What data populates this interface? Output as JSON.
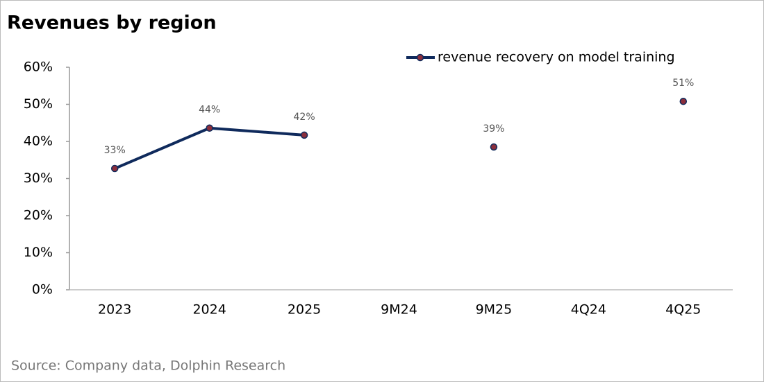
{
  "chart_data": {
    "type": "line",
    "title": "Revenues by region",
    "categories": [
      "2023",
      "2024",
      "2025",
      "9M24",
      "9M25",
      "4Q24",
      "4Q25"
    ],
    "series": [
      {
        "name": "revenue recovery on model training",
        "color": "#0f2a5c",
        "marker_color": "#8b2e3c",
        "values": [
          32.7,
          43.6,
          41.7,
          null,
          38.5,
          null,
          50.8
        ],
        "value_labels": [
          "33%",
          "44%",
          "42%",
          null,
          "39%",
          null,
          "51%"
        ]
      }
    ],
    "ylim": [
      0,
      60
    ],
    "yticks": [
      {
        "value": 0,
        "label": "0%"
      },
      {
        "value": 10,
        "label": "10%"
      },
      {
        "value": 20,
        "label": "20%"
      },
      {
        "value": 30,
        "label": "30%"
      },
      {
        "value": 40,
        "label": "40%"
      },
      {
        "value": 50,
        "label": "50%"
      },
      {
        "value": 60,
        "label": "60%"
      }
    ],
    "legend": "top-right",
    "source": "Source:  Company data, Dolphin Research"
  }
}
